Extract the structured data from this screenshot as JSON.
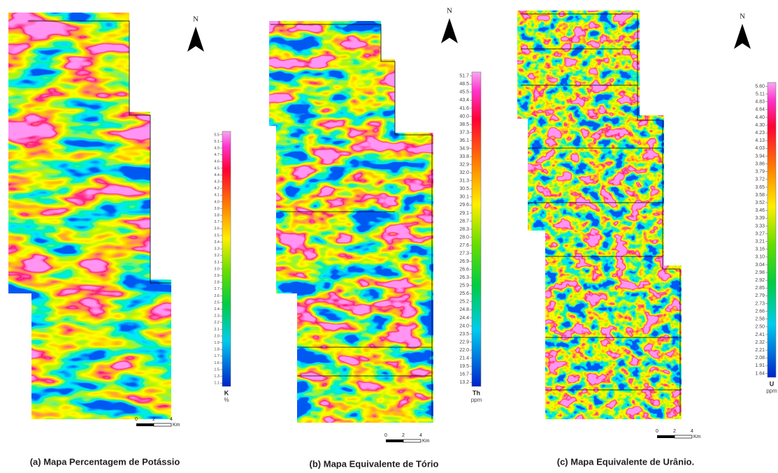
{
  "panels": [
    {
      "caption": "(a) Mapa Percentagem de Potássio",
      "north": "N",
      "scale": {
        "labels": [
          "0",
          "2",
          "4"
        ],
        "unit": "Km"
      },
      "legend": {
        "element": "K",
        "unit": "%",
        "labels": [
          "5.5",
          "5.1",
          "4.9",
          "4.7",
          "4.6",
          "4.5",
          "4.4",
          "4.3",
          "4.2",
          "4.1",
          "4.0",
          "3.9",
          "3.8",
          "3.7",
          "3.6",
          "3.5",
          "3.4",
          "3.3",
          "3.2",
          "3.1",
          "3.0",
          "2.9",
          "2.8",
          "2.7",
          "2.6",
          "2.5",
          "2.4",
          "2.3",
          "2.2",
          "2.1",
          "2.0",
          "1.9",
          "1.8",
          "1.7",
          "1.6",
          "1.5",
          "1.3",
          "1.1"
        ]
      }
    },
    {
      "caption": "(b) Mapa Equivalente de Tório",
      "north": "N",
      "scale": {
        "labels": [
          "0",
          "2",
          "4"
        ],
        "unit": "Km"
      },
      "legend": {
        "element": "Th",
        "unit": "ppm",
        "labels": [
          "51.7",
          "48.5",
          "45.5",
          "43.4",
          "41.6",
          "40.0",
          "38.5",
          "37.3",
          "36.1",
          "34.9",
          "33.8",
          "32.9",
          "32.0",
          "31.3",
          "30.5",
          "30.1",
          "29.6",
          "29.1",
          "28.7",
          "28.3",
          "28.0",
          "27.6",
          "27.3",
          "26.9",
          "26.6",
          "26.3",
          "25.9",
          "25.6",
          "25.2",
          "24.8",
          "24.4",
          "24.0",
          "23.5",
          "22.9",
          "22.0",
          "21.4",
          "19.5",
          "16.7",
          "13.2"
        ]
      }
    },
    {
      "caption": "(c) Mapa Equivalente de Urânio.",
      "north": "N",
      "scale": {
        "labels": [
          "0",
          "2",
          "4"
        ],
        "unit": "Km"
      },
      "legend": {
        "element": "U",
        "unit": "ppm",
        "labels": [
          "5.60",
          "5.11",
          "4.83",
          "4.64",
          "4.40",
          "4.30",
          "4.23",
          "4.13",
          "4.03",
          "3.94",
          "3.86",
          "3.79",
          "3.72",
          "3.65",
          "3.58",
          "3.52",
          "3.46",
          "3.39",
          "3.33",
          "3.27",
          "3.21",
          "3.16",
          "3.10",
          "3.04",
          "2.98",
          "2.92",
          "2.85",
          "2.79",
          "2.73",
          "2.66",
          "2.58",
          "2.50",
          "2.41",
          "2.32",
          "2.21",
          "2.08",
          "1.91",
          "1.64"
        ]
      }
    }
  ]
}
